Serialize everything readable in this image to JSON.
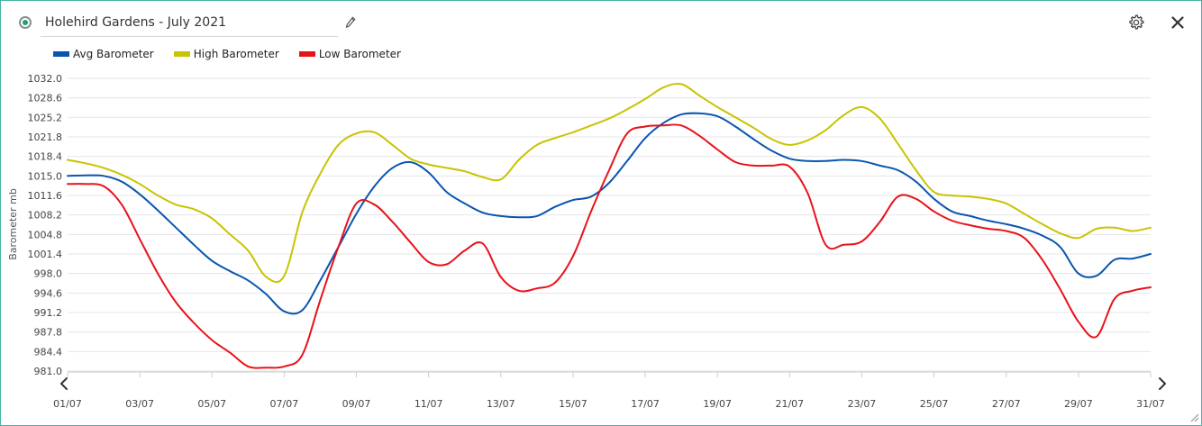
{
  "header": {
    "title": "Holehird Gardens - July 2021",
    "status_icon": "status-radio-icon",
    "edit_icon": "pencil-icon",
    "settings_icon": "gear-icon",
    "close_icon": "close-icon"
  },
  "colors": {
    "frame_border": "#46b3a5",
    "grid": "#e6e6e6",
    "status_dot": "#19a27a"
  },
  "chart_data": {
    "type": "line",
    "ylabel": "Barometer mb",
    "xlabel": "",
    "ylim": [
      981.0,
      1032.0
    ],
    "y_ticks": [
      "981.0",
      "984.4",
      "987.8",
      "991.2",
      "994.6",
      "998.0",
      "1001.4",
      "1004.8",
      "1008.2",
      "1011.6",
      "1015.0",
      "1018.4",
      "1021.8",
      "1025.2",
      "1028.6",
      "1032.0"
    ],
    "x_tick_labels": [
      "01/07",
      "03/07",
      "05/07",
      "07/07",
      "09/07",
      "11/07",
      "13/07",
      "15/07",
      "17/07",
      "19/07",
      "21/07",
      "23/07",
      "25/07",
      "27/07",
      "29/07",
      "31/07"
    ],
    "x_days": [
      1,
      3,
      5,
      7,
      9,
      11,
      13,
      15,
      17,
      19,
      21,
      23,
      25,
      27,
      29,
      31
    ],
    "xlim": [
      1,
      31
    ],
    "grid": true,
    "legend_position": "top-left",
    "series": [
      {
        "name": "Avg Barometer",
        "color": "#0a55b0",
        "x": [
          1,
          1.5,
          2,
          2.5,
          3,
          3.5,
          4,
          4.5,
          5,
          5.5,
          6,
          6.5,
          7,
          7.5,
          8,
          8.5,
          9,
          9.5,
          10,
          10.5,
          11,
          11.5,
          12,
          12.5,
          13,
          13.5,
          14,
          14.5,
          15,
          15.5,
          16,
          16.5,
          17,
          17.5,
          18,
          18.5,
          19,
          19.5,
          20,
          20.5,
          21,
          21.5,
          22,
          22.5,
          23,
          23.5,
          24,
          24.5,
          25,
          25.5,
          26,
          26.5,
          27,
          27.5,
          28,
          28.5,
          29,
          29.5,
          30,
          30.5,
          31
        ],
        "values": [
          1015.0,
          1015.1,
          1015.0,
          1014.0,
          1011.8,
          1009.0,
          1006.0,
          1003.0,
          1000.2,
          998.4,
          996.8,
          994.4,
          991.4,
          991.6,
          996.8,
          1002.6,
          1008.4,
          1013.2,
          1016.4,
          1017.4,
          1015.6,
          1012.2,
          1010.2,
          1008.6,
          1008.0,
          1007.8,
          1008.0,
          1009.6,
          1010.8,
          1011.4,
          1013.8,
          1017.6,
          1021.6,
          1024.2,
          1025.7,
          1025.9,
          1025.4,
          1023.6,
          1021.4,
          1019.4,
          1018.0,
          1017.6,
          1017.6,
          1017.8,
          1017.6,
          1016.8,
          1016.0,
          1014.0,
          1011.0,
          1008.8,
          1008.0,
          1007.2,
          1006.6,
          1005.8,
          1004.6,
          1002.6,
          998.0,
          997.6,
          1000.4,
          1000.6,
          1001.4
        ]
      },
      {
        "name": "High Barometer",
        "color": "#c8c400",
        "x": [
          1,
          1.5,
          2,
          2.5,
          3,
          3.5,
          4,
          4.5,
          5,
          5.5,
          6,
          6.5,
          7,
          7.5,
          8,
          8.5,
          9,
          9.5,
          10,
          10.5,
          11,
          11.5,
          12,
          12.5,
          13,
          13.5,
          14,
          14.5,
          15,
          15.5,
          16,
          16.5,
          17,
          17.5,
          18,
          18.5,
          19,
          19.5,
          20,
          20.5,
          21,
          21.5,
          22,
          22.5,
          23,
          23.5,
          24,
          24.5,
          25,
          25.5,
          26,
          26.5,
          27,
          27.5,
          28,
          28.5,
          29,
          29.5,
          30,
          30.5,
          31
        ],
        "values": [
          1017.8,
          1017.2,
          1016.4,
          1015.2,
          1013.6,
          1011.6,
          1010.0,
          1009.2,
          1007.6,
          1004.8,
          1002.0,
          997.4,
          997.6,
          1008.6,
          1015.4,
          1020.4,
          1022.4,
          1022.6,
          1020.4,
          1018.0,
          1017.0,
          1016.4,
          1015.8,
          1014.8,
          1014.4,
          1017.8,
          1020.4,
          1021.6,
          1022.6,
          1023.8,
          1025.0,
          1026.6,
          1028.4,
          1030.4,
          1031.0,
          1029.0,
          1027.0,
          1025.2,
          1023.4,
          1021.4,
          1020.4,
          1021.2,
          1023.0,
          1025.6,
          1027.0,
          1025.0,
          1020.6,
          1016.0,
          1012.2,
          1011.6,
          1011.4,
          1011.0,
          1010.2,
          1008.4,
          1006.6,
          1005.0,
          1004.2,
          1005.8,
          1006.0,
          1005.4,
          1006.0
        ]
      },
      {
        "name": "Low Barometer",
        "color": "#e8121a",
        "x": [
          1,
          1.5,
          2,
          2.5,
          3,
          3.5,
          4,
          4.5,
          5,
          5.5,
          6,
          6.5,
          7,
          7.5,
          8,
          8.5,
          9,
          9.5,
          10,
          10.5,
          11,
          11.5,
          12,
          12.5,
          13,
          13.5,
          14,
          14.5,
          15,
          15.5,
          16,
          16.5,
          17,
          17.5,
          18,
          18.5,
          19,
          19.5,
          20,
          20.5,
          21,
          21.5,
          22,
          22.5,
          23,
          23.5,
          24,
          24.5,
          25,
          25.5,
          26,
          26.5,
          27,
          27.5,
          28,
          28.5,
          29,
          29.5,
          30,
          30.5,
          31
        ],
        "values": [
          1013.6,
          1013.6,
          1013.2,
          1010.0,
          1004.0,
          998.0,
          993.0,
          989.4,
          986.4,
          984.2,
          981.8,
          981.6,
          981.8,
          983.8,
          993.4,
          1002.6,
          1010.2,
          1010.0,
          1007.0,
          1003.4,
          1000.0,
          999.6,
          1002.0,
          1003.2,
          997.4,
          995.0,
          995.4,
          996.4,
          1001.0,
          1008.8,
          1016.0,
          1022.4,
          1023.6,
          1023.8,
          1023.8,
          1022.0,
          1019.6,
          1017.4,
          1016.8,
          1016.8,
          1016.6,
          1012.0,
          1003.0,
          1003.0,
          1003.6,
          1007.0,
          1011.4,
          1011.0,
          1008.8,
          1007.2,
          1006.4,
          1005.8,
          1005.4,
          1004.2,
          1000.4,
          995.2,
          989.6,
          987.0,
          993.6,
          995.0,
          995.6
        ]
      }
    ]
  }
}
